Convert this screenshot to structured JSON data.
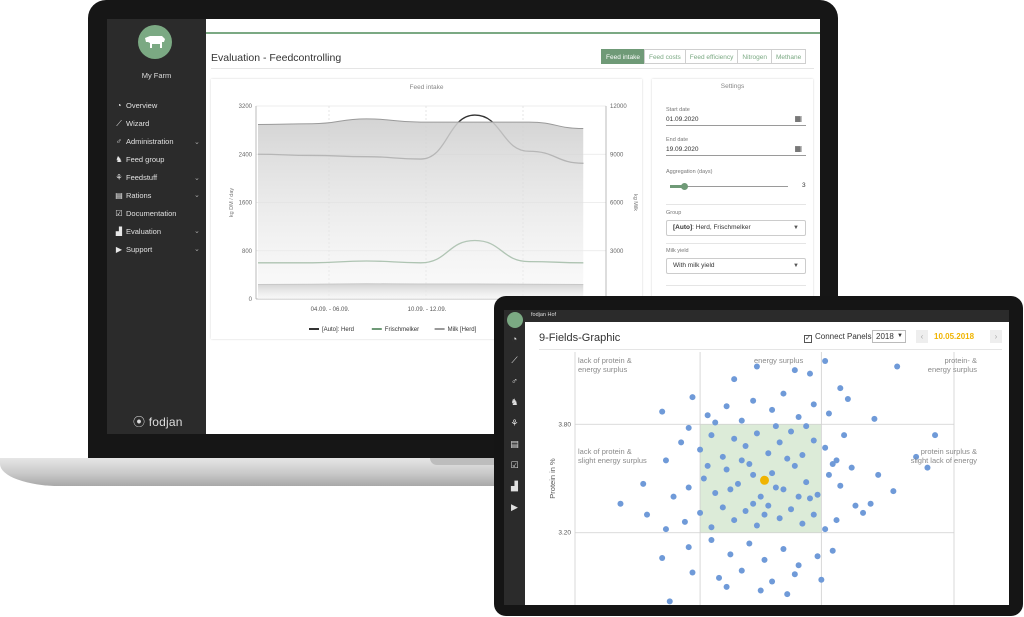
{
  "laptop": {
    "sidebar": {
      "farm_name": "My Farm",
      "brand": "fodjan",
      "items": [
        {
          "icon": "gauge-icon",
          "label": "Overview",
          "expandable": false
        },
        {
          "icon": "wand-icon",
          "label": "Wizard",
          "expandable": false
        },
        {
          "icon": "gender-icon",
          "label": "Administration",
          "expandable": true
        },
        {
          "icon": "cow-icon",
          "label": "Feed group",
          "expandable": false
        },
        {
          "icon": "plant-icon",
          "label": "Feedstuff",
          "expandable": true
        },
        {
          "icon": "clipboard-icon",
          "label": "Rations",
          "expandable": true
        },
        {
          "icon": "document-check-icon",
          "label": "Documentation",
          "expandable": false
        },
        {
          "icon": "bar-chart-icon",
          "label": "Evaluation",
          "expandable": true
        },
        {
          "icon": "play-circle-icon",
          "label": "Support",
          "expandable": true
        }
      ]
    },
    "page_title": "Evaluation - Feedcontrolling",
    "tabs": [
      {
        "label": "Feed intake",
        "active": true
      },
      {
        "label": "Feed costs",
        "active": false
      },
      {
        "label": "Feed efficiency",
        "active": false
      },
      {
        "label": "Nitrogen",
        "active": false
      },
      {
        "label": "Methane",
        "active": false
      }
    ],
    "feed_chart_title": "Feed intake",
    "settings": {
      "title": "Settings",
      "start_date_label": "Start date",
      "start_date": "01.09.2020",
      "end_date_label": "End date",
      "end_date": "19.09.2020",
      "aggregation_label": "Aggregation (days)",
      "aggregation_value": "3",
      "aggregation_fraction": 0.12,
      "group_label": "Group",
      "group_value_prefix": "[Auto]",
      "group_value_rest": ": Herd, Frischmelker",
      "milk_yield_label": "Milk yield",
      "milk_yield_value": "With milk yield"
    }
  },
  "tablet": {
    "topbar_title": "fodjan Hof",
    "title": "9-Fields-Graphic",
    "connect_label": "Connect Panels",
    "connect_checked": true,
    "year": "2018",
    "date": "10.05.2018",
    "quadrant_labels": {
      "top_left": [
        "lack of protein &",
        "energy surplus"
      ],
      "top_center": [
        "energy surplus"
      ],
      "top_right": [
        "protein- &",
        "energy surplus"
      ],
      "mid_left": [
        "lack of protein &",
        "slight energy surplus"
      ],
      "mid_right": [
        "protein surplus &",
        "slight lack of energy"
      ]
    },
    "sidebar_icons": [
      "gauge-icon",
      "wand-icon",
      "gender-icon",
      "cow-icon",
      "plant-icon",
      "clipboard-icon",
      "document-check-icon",
      "bar-chart-icon",
      "play-circle-icon"
    ]
  },
  "chart_data": [
    {
      "type": "line",
      "title": "Feed intake",
      "x_ticks": [
        "04.09. - 06.09.",
        "10.09. - 12.09."
      ],
      "ylabel": "kg DM / day",
      "y2label": "kg Milk",
      "ylim": [
        0,
        3200
      ],
      "y_ticks": [
        0,
        800,
        1600,
        2400,
        3200
      ],
      "y2lim": [
        0,
        12000
      ],
      "y2_ticks": [
        3000,
        6000,
        9000,
        12000
      ],
      "x": [
        0,
        1,
        2,
        3,
        4,
        5,
        6
      ],
      "series": [
        {
          "name": "[Auto]: Herd",
          "axis": "left",
          "color": "#333333",
          "values": [
            2400,
            2380,
            2360,
            2320,
            3050,
            2450,
            2250
          ]
        },
        {
          "name": "Frischmelker",
          "axis": "left",
          "color": "#6f9a77",
          "values": [
            600,
            600,
            630,
            600,
            970,
            620,
            600
          ]
        },
        {
          "name": "Milk [Herd]",
          "axis": "right",
          "color": "#9a9a9a",
          "fill": true,
          "values": [
            10850,
            10900,
            11200,
            11000,
            11000,
            11000,
            10600
          ]
        },
        {
          "name": "Mi",
          "axis": "right",
          "color": "#c8c8c8",
          "fill": true,
          "values": [
            900,
            920,
            950,
            930,
            930,
            920,
            900
          ]
        }
      ]
    },
    {
      "type": "scatter",
      "title": "9-Fields-Graphic",
      "ylabel": "Protein in %",
      "y_ticks": [
        3.2,
        3.8
      ],
      "y_tick_labels": [
        "3.20",
        "3.80"
      ],
      "ylim": [
        2.8,
        4.2
      ],
      "xlim": [
        0,
        1
      ],
      "target_zone": {
        "x": [
          0.33,
          0.65
        ],
        "y": [
          3.2,
          3.8
        ]
      },
      "highlight": {
        "x": 0.5,
        "y": 3.49,
        "color": "#f0b400"
      },
      "point_color": "#6f9ad8",
      "points": [
        [
          0.31,
          3.95
        ],
        [
          0.42,
          4.05
        ],
        [
          0.48,
          4.12
        ],
        [
          0.58,
          4.1
        ],
        [
          0.62,
          4.08
        ],
        [
          0.66,
          4.15
        ],
        [
          0.7,
          4.0
        ],
        [
          0.85,
          4.12
        ],
        [
          0.23,
          3.87
        ],
        [
          0.3,
          3.78
        ],
        [
          0.35,
          3.85
        ],
        [
          0.4,
          3.9
        ],
        [
          0.44,
          3.82
        ],
        [
          0.47,
          3.93
        ],
        [
          0.52,
          3.88
        ],
        [
          0.55,
          3.97
        ],
        [
          0.59,
          3.84
        ],
        [
          0.63,
          3.91
        ],
        [
          0.67,
          3.86
        ],
        [
          0.72,
          3.94
        ],
        [
          0.79,
          3.83
        ],
        [
          0.24,
          3.6
        ],
        [
          0.28,
          3.7
        ],
        [
          0.33,
          3.66
        ],
        [
          0.36,
          3.74
        ],
        [
          0.39,
          3.62
        ],
        [
          0.42,
          3.72
        ],
        [
          0.45,
          3.68
        ],
        [
          0.48,
          3.75
        ],
        [
          0.51,
          3.64
        ],
        [
          0.54,
          3.7
        ],
        [
          0.57,
          3.76
        ],
        [
          0.6,
          3.63
        ],
        [
          0.63,
          3.71
        ],
        [
          0.66,
          3.67
        ],
        [
          0.69,
          3.6
        ],
        [
          0.71,
          3.74
        ],
        [
          0.8,
          3.52
        ],
        [
          0.84,
          3.43
        ],
        [
          0.26,
          3.4
        ],
        [
          0.3,
          3.45
        ],
        [
          0.34,
          3.5
        ],
        [
          0.37,
          3.42
        ],
        [
          0.4,
          3.55
        ],
        [
          0.43,
          3.47
        ],
        [
          0.46,
          3.58
        ],
        [
          0.49,
          3.4
        ],
        [
          0.52,
          3.53
        ],
        [
          0.55,
          3.44
        ],
        [
          0.58,
          3.57
        ],
        [
          0.61,
          3.48
        ],
        [
          0.64,
          3.41
        ],
        [
          0.67,
          3.52
        ],
        [
          0.7,
          3.46
        ],
        [
          0.73,
          3.56
        ],
        [
          0.78,
          3.36
        ],
        [
          0.12,
          3.36
        ],
        [
          0.19,
          3.3
        ],
        [
          0.24,
          3.22
        ],
        [
          0.29,
          3.26
        ],
        [
          0.33,
          3.31
        ],
        [
          0.36,
          3.23
        ],
        [
          0.39,
          3.34
        ],
        [
          0.42,
          3.27
        ],
        [
          0.45,
          3.32
        ],
        [
          0.48,
          3.24
        ],
        [
          0.51,
          3.35
        ],
        [
          0.54,
          3.28
        ],
        [
          0.57,
          3.33
        ],
        [
          0.6,
          3.25
        ],
        [
          0.63,
          3.3
        ],
        [
          0.66,
          3.22
        ],
        [
          0.69,
          3.27
        ],
        [
          0.76,
          3.31
        ],
        [
          0.3,
          3.12
        ],
        [
          0.36,
          3.16
        ],
        [
          0.41,
          3.08
        ],
        [
          0.46,
          3.14
        ],
        [
          0.5,
          3.05
        ],
        [
          0.55,
          3.11
        ],
        [
          0.59,
          3.02
        ],
        [
          0.64,
          3.07
        ],
        [
          0.23,
          3.06
        ],
        [
          0.31,
          2.98
        ],
        [
          0.38,
          2.95
        ],
        [
          0.44,
          2.99
        ],
        [
          0.52,
          2.93
        ],
        [
          0.58,
          2.97
        ],
        [
          0.65,
          2.94
        ],
        [
          0.4,
          2.9
        ],
        [
          0.49,
          2.88
        ],
        [
          0.25,
          2.82
        ],
        [
          0.56,
          2.86
        ],
        [
          0.68,
          3.1
        ],
        [
          0.74,
          3.35
        ],
        [
          0.18,
          3.47
        ],
        [
          0.9,
          3.62
        ],
        [
          0.95,
          3.74
        ],
        [
          0.93,
          3.56
        ],
        [
          0.37,
          3.81
        ],
        [
          0.53,
          3.79
        ],
        [
          0.61,
          3.79
        ],
        [
          0.47,
          3.36
        ],
        [
          0.5,
          3.3
        ],
        [
          0.44,
          3.6
        ],
        [
          0.56,
          3.61
        ],
        [
          0.41,
          3.44
        ],
        [
          0.62,
          3.39
        ],
        [
          0.35,
          3.57
        ],
        [
          0.68,
          3.58
        ],
        [
          0.53,
          3.45
        ],
        [
          0.47,
          3.52
        ],
        [
          0.59,
          3.4
        ]
      ]
    }
  ]
}
